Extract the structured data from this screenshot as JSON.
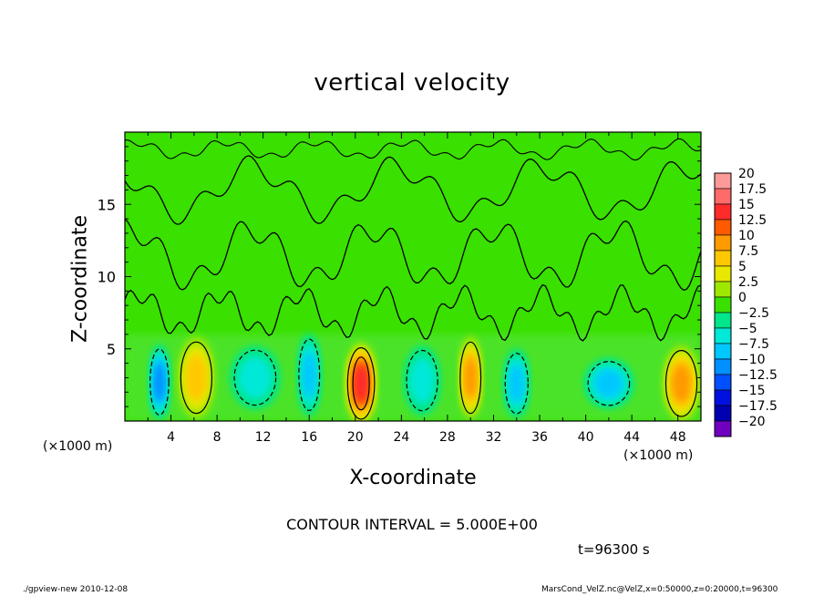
{
  "chart_data": {
    "type": "heatmap",
    "title": "vertical velocity",
    "xlabel": "X-coordinate",
    "ylabel": "Z-coordinate",
    "x_unit_left": "(×1000 m)",
    "x_unit_right": "(×1000 m)",
    "xlim": [
      0,
      50
    ],
    "ylim": [
      0,
      20
    ],
    "x_ticks": [
      "4",
      "8",
      "12",
      "16",
      "20",
      "24",
      "28",
      "32",
      "36",
      "40",
      "44",
      "48"
    ],
    "y_ticks": [
      "5",
      "10",
      "15"
    ],
    "colorbar": {
      "labels": [
        "20",
        "17.5",
        "15",
        "12.5",
        "10",
        "7.5",
        "5",
        "2.5",
        "0",
        "−2.5",
        "−5",
        "−7.5",
        "−10",
        "−12.5",
        "−15",
        "−17.5",
        "−20"
      ],
      "colors": [
        "#ff9a9a",
        "#ff6a6a",
        "#ff2a2a",
        "#ff5a00",
        "#ff9a00",
        "#ffc800",
        "#e8e800",
        "#9ee800",
        "#3ae000",
        "#00e68a",
        "#00e8d8",
        "#00c8ff",
        "#0090ff",
        "#0050ff",
        "#0010e0",
        "#0000b0",
        "#7000c0"
      ]
    },
    "background_value": 0,
    "features": [
      {
        "x": 3.0,
        "z": 2.7,
        "value": -8,
        "rx": 0.9,
        "rz": 2.4
      },
      {
        "x": 6.2,
        "z": 3.0,
        "value": 7,
        "rx": 1.5,
        "rz": 2.6
      },
      {
        "x": 11.3,
        "z": 3.0,
        "value": -3,
        "rx": 2.0,
        "rz": 2.0
      },
      {
        "x": 16.0,
        "z": 3.2,
        "value": -6,
        "rx": 1.0,
        "rz": 2.6
      },
      {
        "x": 20.5,
        "z": 2.6,
        "value": 13,
        "rx": 1.3,
        "rz": 2.6
      },
      {
        "x": 25.8,
        "z": 2.8,
        "value": -5,
        "rx": 1.5,
        "rz": 2.2
      },
      {
        "x": 30.0,
        "z": 3.0,
        "value": 8,
        "rx": 1.0,
        "rz": 2.6
      },
      {
        "x": 34.0,
        "z": 2.6,
        "value": -6,
        "rx": 1.1,
        "rz": 2.2
      },
      {
        "x": 42.0,
        "z": 2.6,
        "value": -6,
        "rx": 2.0,
        "rz": 1.6
      },
      {
        "x": 48.3,
        "z": 2.6,
        "value": 9,
        "rx": 1.5,
        "rz": 2.4
      }
    ]
  },
  "contour_interval": "CONTOUR INTERVAL = 5.000E+00",
  "time_label": "t=96300 s",
  "footer_left": "./gpview-new   2010-12-08",
  "footer_right": "MarsCond_VelZ.nc@VelZ,x=0:50000,z=0:20000,t=96300"
}
